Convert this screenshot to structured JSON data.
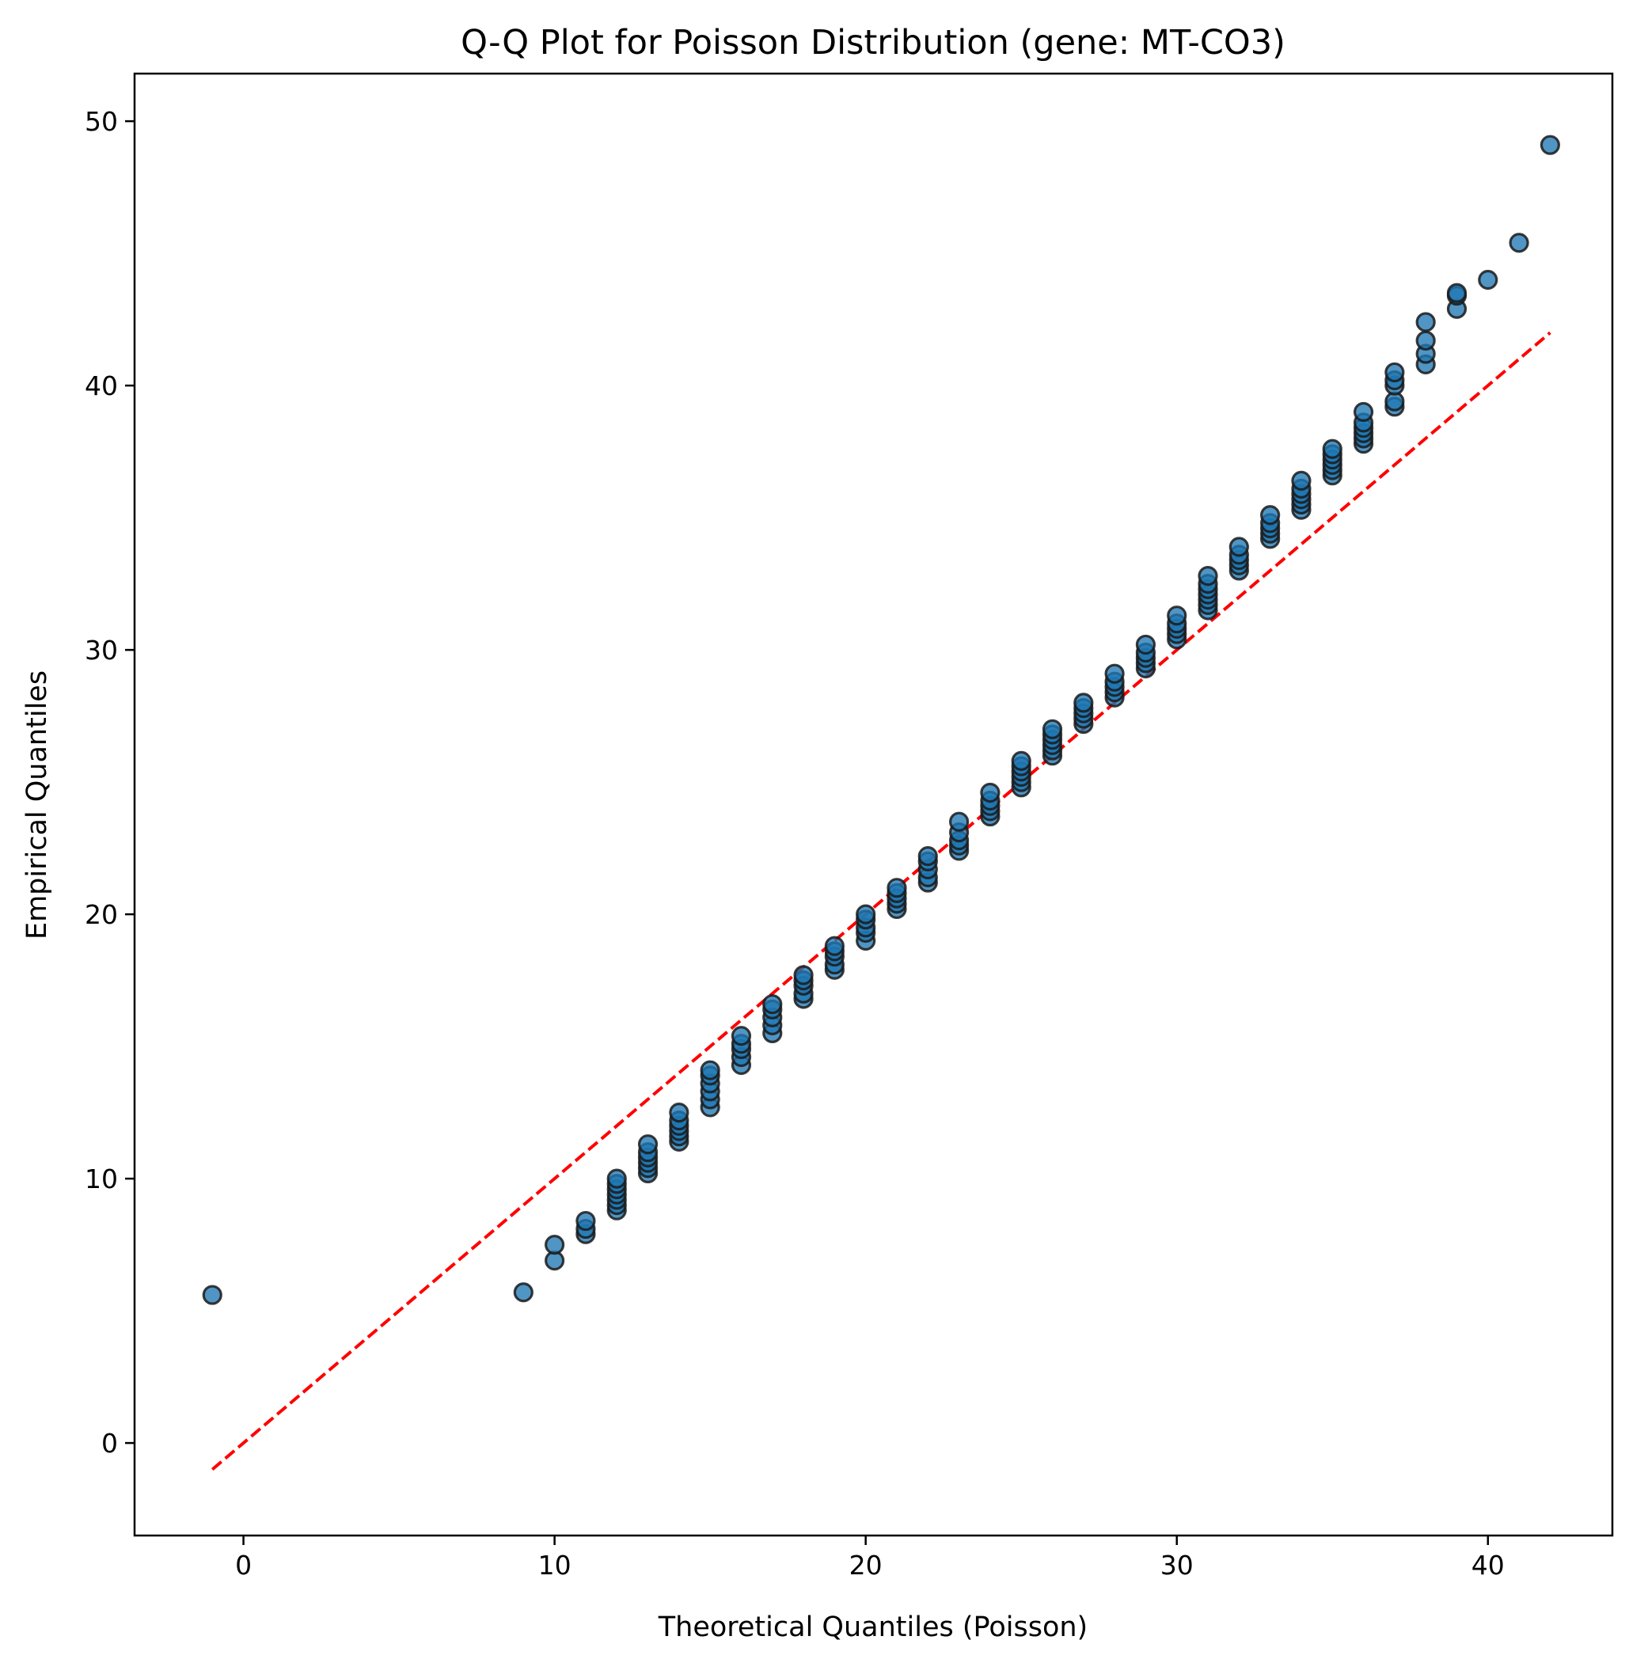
{
  "chart_data": {
    "type": "scatter",
    "title": "Q-Q Plot for Poisson Distribution (gene: MT-CO3)",
    "xlabel": "Theoretical Quantiles (Poisson)",
    "ylabel": "Empirical Quantiles",
    "xlim": [
      -3.5,
      44
    ],
    "ylim": [
      -3.5,
      51.8
    ],
    "xticks": [
      0,
      10,
      20,
      30,
      40
    ],
    "yticks": [
      0,
      10,
      20,
      30,
      40,
      50
    ],
    "grid": false,
    "legend": "none",
    "colors": {
      "points": "#1f77b4",
      "reference_line": "#ff0000"
    },
    "series": [
      {
        "type": "scatter",
        "points": [
          [
            -1,
            5.6
          ],
          [
            9,
            5.7
          ],
          [
            10,
            6.9
          ],
          [
            10,
            7.5
          ],
          [
            11,
            7.9
          ],
          [
            11,
            8.1
          ],
          [
            11,
            8.4
          ],
          [
            12,
            8.8
          ],
          [
            12,
            9.0
          ],
          [
            12,
            9.2
          ],
          [
            12,
            9.4
          ],
          [
            12,
            9.6
          ],
          [
            12,
            9.8
          ],
          [
            12,
            10.0
          ],
          [
            13,
            10.2
          ],
          [
            13,
            10.4
          ],
          [
            13,
            10.6
          ],
          [
            13,
            10.8
          ],
          [
            13,
            11.0
          ],
          [
            13,
            11.3
          ],
          [
            14,
            11.4
          ],
          [
            14,
            11.6
          ],
          [
            14,
            11.8
          ],
          [
            14,
            12.0
          ],
          [
            14,
            12.2
          ],
          [
            14,
            12.5
          ],
          [
            15,
            12.7
          ],
          [
            15,
            13.0
          ],
          [
            15,
            13.3
          ],
          [
            15,
            13.6
          ],
          [
            15,
            13.9
          ],
          [
            15,
            14.1
          ],
          [
            16,
            14.3
          ],
          [
            16,
            14.6
          ],
          [
            16,
            14.9
          ],
          [
            16,
            15.1
          ],
          [
            16,
            15.4
          ],
          [
            17,
            15.5
          ],
          [
            17,
            15.8
          ],
          [
            17,
            16.1
          ],
          [
            17,
            16.4
          ],
          [
            17,
            16.6
          ],
          [
            18,
            16.8
          ],
          [
            18,
            17.0
          ],
          [
            18,
            17.3
          ],
          [
            18,
            17.5
          ],
          [
            18,
            17.7
          ],
          [
            19,
            17.9
          ],
          [
            19,
            18.1
          ],
          [
            19,
            18.4
          ],
          [
            19,
            18.6
          ],
          [
            19,
            18.8
          ],
          [
            20,
            19.0
          ],
          [
            20,
            19.3
          ],
          [
            20,
            19.5
          ],
          [
            20,
            19.8
          ],
          [
            20,
            20.0
          ],
          [
            21,
            20.2
          ],
          [
            21,
            20.4
          ],
          [
            21,
            20.6
          ],
          [
            21,
            20.8
          ],
          [
            21,
            21.0
          ],
          [
            22,
            21.2
          ],
          [
            22,
            21.4
          ],
          [
            22,
            21.7
          ],
          [
            22,
            22.0
          ],
          [
            22,
            22.2
          ],
          [
            23,
            22.4
          ],
          [
            23,
            22.6
          ],
          [
            23,
            22.8
          ],
          [
            23,
            23.1
          ],
          [
            23,
            23.5
          ],
          [
            24,
            23.7
          ],
          [
            24,
            23.9
          ],
          [
            24,
            24.1
          ],
          [
            24,
            24.3
          ],
          [
            24,
            24.6
          ],
          [
            25,
            24.8
          ],
          [
            25,
            25.0
          ],
          [
            25,
            25.2
          ],
          [
            25,
            25.4
          ],
          [
            25,
            25.6
          ],
          [
            25,
            25.8
          ],
          [
            26,
            26.0
          ],
          [
            26,
            26.2
          ],
          [
            26,
            26.4
          ],
          [
            26,
            26.6
          ],
          [
            26,
            26.8
          ],
          [
            26,
            27.0
          ],
          [
            27,
            27.2
          ],
          [
            27,
            27.4
          ],
          [
            27,
            27.6
          ],
          [
            27,
            27.8
          ],
          [
            27,
            28.0
          ],
          [
            28,
            28.2
          ],
          [
            28,
            28.4
          ],
          [
            28,
            28.6
          ],
          [
            28,
            28.8
          ],
          [
            28,
            29.1
          ],
          [
            29,
            29.3
          ],
          [
            29,
            29.5
          ],
          [
            29,
            29.7
          ],
          [
            29,
            29.9
          ],
          [
            29,
            30.2
          ],
          [
            30,
            30.4
          ],
          [
            30,
            30.6
          ],
          [
            30,
            30.8
          ],
          [
            30,
            31.0
          ],
          [
            30,
            31.3
          ],
          [
            31,
            31.5
          ],
          [
            31,
            31.7
          ],
          [
            31,
            31.9
          ],
          [
            31,
            32.1
          ],
          [
            31,
            32.3
          ],
          [
            31,
            32.5
          ],
          [
            31,
            32.8
          ],
          [
            32,
            33.0
          ],
          [
            32,
            33.2
          ],
          [
            32,
            33.4
          ],
          [
            32,
            33.6
          ],
          [
            32,
            33.9
          ],
          [
            33,
            34.2
          ],
          [
            33,
            34.4
          ],
          [
            33,
            34.6
          ],
          [
            33,
            34.8
          ],
          [
            33,
            35.1
          ],
          [
            34,
            35.3
          ],
          [
            34,
            35.5
          ],
          [
            34,
            35.7
          ],
          [
            34,
            35.9
          ],
          [
            34,
            36.1
          ],
          [
            34,
            36.4
          ],
          [
            35,
            36.6
          ],
          [
            35,
            36.8
          ],
          [
            35,
            37.0
          ],
          [
            35,
            37.2
          ],
          [
            35,
            37.4
          ],
          [
            35,
            37.6
          ],
          [
            36,
            37.8
          ],
          [
            36,
            38.0
          ],
          [
            36,
            38.2
          ],
          [
            36,
            38.4
          ],
          [
            36,
            38.6
          ],
          [
            36,
            39.0
          ],
          [
            37,
            39.2
          ],
          [
            37,
            39.4
          ],
          [
            37,
            40.0
          ],
          [
            37,
            40.2
          ],
          [
            37,
            40.5
          ],
          [
            38,
            40.8
          ],
          [
            38,
            41.2
          ],
          [
            38,
            41.7
          ],
          [
            38,
            42.4
          ],
          [
            39,
            42.9
          ],
          [
            39,
            43.4
          ],
          [
            39,
            43.5
          ],
          [
            40,
            44.0
          ],
          [
            41,
            45.4
          ],
          [
            42,
            49.1
          ]
        ]
      },
      {
        "type": "line",
        "style": "dashed",
        "x": [
          -1,
          42
        ],
        "y": [
          -1,
          42
        ]
      }
    ]
  }
}
